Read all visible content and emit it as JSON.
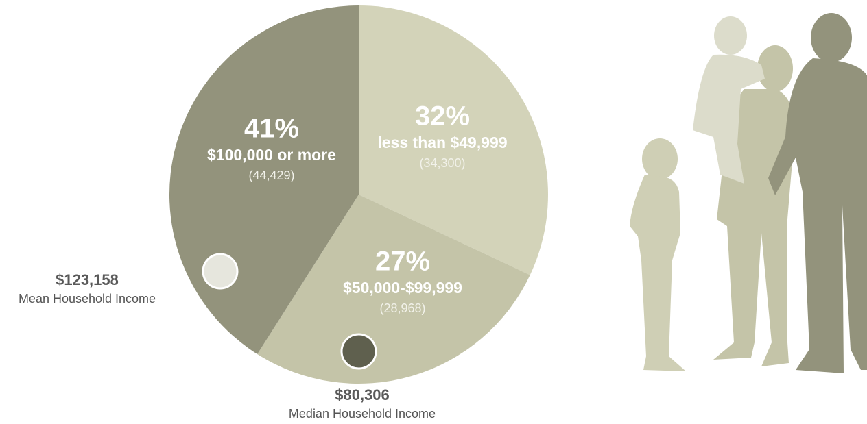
{
  "chart_data": {
    "type": "pie",
    "categories": [
      "less than $49,999",
      "$50,000-$99,999",
      "$100,000 or more"
    ],
    "values": [
      32,
      27,
      41
    ],
    "value_labels": [
      "32%",
      "27%",
      "41%"
    ],
    "counts": [
      {
        "value": 34300,
        "label": "(34,300)"
      },
      {
        "value": 28968,
        "label": "(28,968)"
      },
      {
        "value": 44429,
        "label": "(44,429)"
      }
    ],
    "colors": [
      "#d3d3b9",
      "#c4c4a8",
      "#93937c"
    ],
    "annotations": [
      {
        "value": 123158,
        "label": "$123,158",
        "text": "Mean Household Income",
        "color": "#e6e6dd"
      },
      {
        "value": 80306,
        "label": "$80,306",
        "text": "Median Household Income",
        "color": "#5f604e"
      }
    ]
  }
}
